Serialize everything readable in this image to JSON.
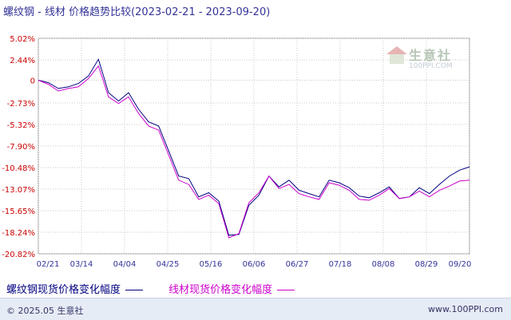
{
  "header": {
    "title": "螺纹钢 - 线材 价格趋势比较(2023-02-21 - 2023-09-20)"
  },
  "watermark": {
    "name": "生意社",
    "url": "100PPI.COM",
    "icon": "house-logo-icon"
  },
  "legend": {
    "series1_label": "螺纹钢现货价格变化幅度",
    "series2_label": "线材现货价格变化幅度"
  },
  "footer": {
    "copyright": "© 2025.05 生意社",
    "site": "www.100PPI.com"
  },
  "chart_data": {
    "type": "line",
    "title": "螺纹钢 - 线材 价格趋势比较(2023-02-21 - 2023-09-20)",
    "ylim": [
      -20.82,
      5.02
    ],
    "y_ticks": [
      5.02,
      2.44,
      0,
      -2.73,
      -5.32,
      -7.9,
      -10.48,
      -13.07,
      -15.65,
      -18.24,
      -20.82
    ],
    "y_tick_labels": [
      "5.02%",
      "2.44%",
      "0",
      "-2.73%",
      "-5.32%",
      "-7.90%",
      "-10.48%",
      "-13.07%",
      "-15.65%",
      "-18.24%",
      "-20.82%"
    ],
    "x_ticks": [
      "02/21",
      "03/14",
      "04/04",
      "04/25",
      "05/16",
      "06/06",
      "06/27",
      "07/18",
      "08/08",
      "08/29",
      "09/20"
    ],
    "grid": true,
    "legend_position": "bottom",
    "series": [
      {
        "name": "螺纹钢现货价格变化幅度",
        "color": "#000080",
        "values": [
          0.0,
          -0.3,
          -1.0,
          -0.8,
          -0.4,
          0.5,
          2.5,
          -1.5,
          -2.5,
          -1.5,
          -3.5,
          -5.0,
          -5.5,
          -8.5,
          -11.5,
          -11.8,
          -14.0,
          -13.5,
          -14.5,
          -18.6,
          -18.5,
          -15.0,
          -13.8,
          -11.5,
          -12.8,
          -12.0,
          -13.2,
          -13.6,
          -14.0,
          -12.0,
          -12.3,
          -12.9,
          -13.9,
          -14.1,
          -13.5,
          -12.8,
          -14.2,
          -14.0,
          -12.9,
          -13.6,
          -12.5,
          -11.5,
          -10.8,
          -10.4
        ]
      },
      {
        "name": "线材现货价格变化幅度",
        "color": "#cc00cc",
        "values": [
          0.0,
          -0.5,
          -1.3,
          -1.0,
          -0.8,
          0.2,
          1.7,
          -2.0,
          -2.8,
          -2.0,
          -4.0,
          -5.5,
          -6.0,
          -9.0,
          -12.0,
          -12.5,
          -14.3,
          -13.8,
          -14.8,
          -18.9,
          -18.4,
          -14.7,
          -13.5,
          -11.5,
          -13.0,
          -12.5,
          -13.6,
          -14.0,
          -14.3,
          -12.3,
          -12.6,
          -13.2,
          -14.3,
          -14.4,
          -13.8,
          -13.0,
          -14.2,
          -14.0,
          -13.3,
          -14.0,
          -13.2,
          -12.7,
          -12.1,
          -12.0
        ]
      }
    ]
  }
}
